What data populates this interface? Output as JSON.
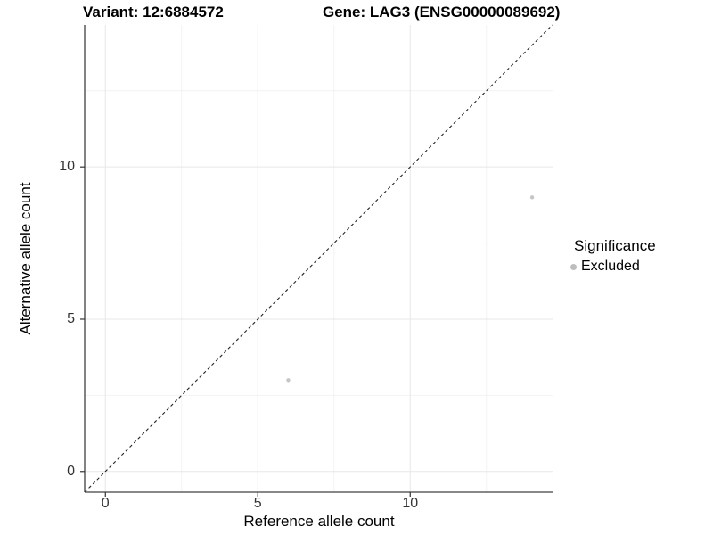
{
  "chart_data": {
    "type": "scatter",
    "title_left": "Variant: 12:6884572",
    "title_right": "Gene: LAG3 (ENSG00000089692)",
    "xlabel": "Reference allele count",
    "ylabel": "Alternative allele count",
    "xlim": [
      -0.68,
      14.7
    ],
    "ylim": [
      -0.68,
      14.66
    ],
    "x_ticks": [
      0,
      5,
      10
    ],
    "y_ticks": [
      0,
      5,
      10
    ],
    "x_minor_ticks": [
      2.5,
      7.5,
      12.5
    ],
    "y_minor_ticks": [
      2.5,
      7.5,
      12.5
    ],
    "grid": "major+minor",
    "legend_position": "right",
    "legend": {
      "title": "Significance",
      "items": [
        {
          "label": "Excluded",
          "color": "#bdbdbd"
        }
      ]
    },
    "identity_line": {
      "slope": 1,
      "intercept": 0,
      "style": "dashed",
      "color": "#222222",
      "dash": "3.5 3"
    },
    "series": [
      {
        "name": "Excluded",
        "color": "#c6c6c6",
        "points": [
          {
            "x": 6,
            "y": 3
          },
          {
            "x": 14,
            "y": 9
          }
        ]
      }
    ],
    "point_radius_px": 2.2,
    "legend_dot_radius_px": 3.5,
    "colors": {
      "grid_major": "#e7e7e7",
      "grid_minor": "#f2f2f2",
      "axis_line": "#404040",
      "tick_mark": "#333333",
      "tick_label": "#333333",
      "background": "#ffffff"
    }
  }
}
